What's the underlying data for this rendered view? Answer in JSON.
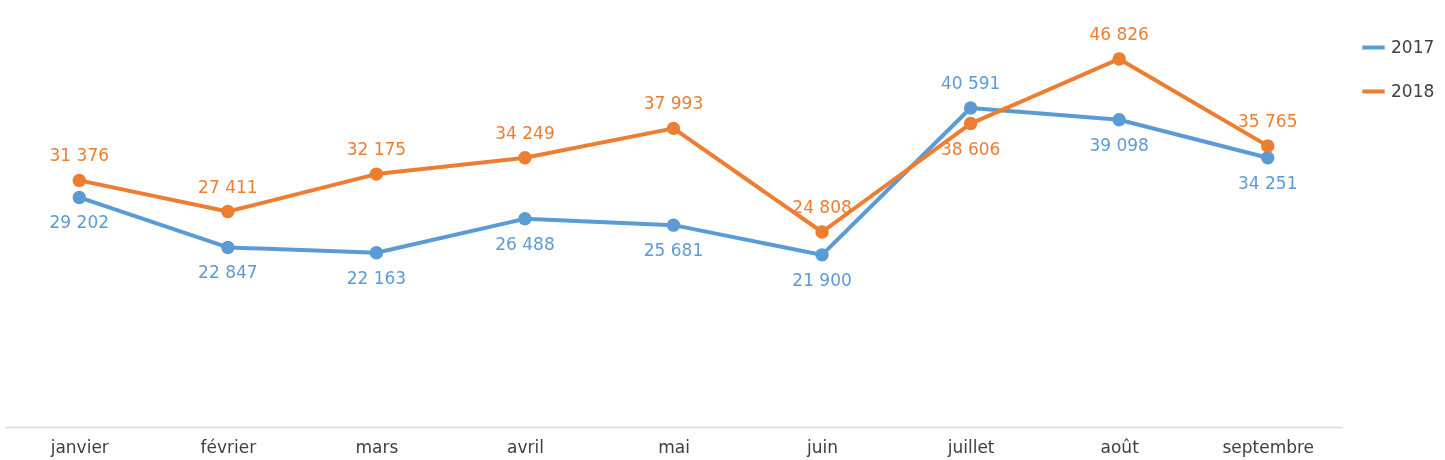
{
  "chart_data": {
    "type": "line",
    "categories": [
      "janvier",
      "février",
      "mars",
      "avril",
      "mai",
      "juin",
      "juillet",
      "août",
      "septembre"
    ],
    "series": [
      {
        "name": "2017",
        "color": "#5b9bd5",
        "values": [
          29202,
          22847,
          22163,
          26488,
          25681,
          21900,
          40591,
          39098,
          34251
        ]
      },
      {
        "name": "2018",
        "color": "#ed7d31",
        "values": [
          31376,
          27411,
          32175,
          34249,
          37993,
          24808,
          38606,
          46826,
          35765
        ]
      }
    ],
    "data_labels": true,
    "tick_labels": "x",
    "grid": false,
    "legend": "right",
    "marker": "circle",
    "line_style": "solid"
  }
}
